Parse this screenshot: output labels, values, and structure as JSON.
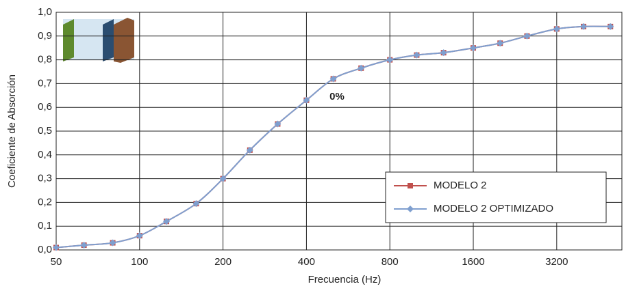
{
  "chart_data": {
    "type": "line",
    "x_label": "Frecuencia (Hz)",
    "y_label": "Coeficiente de Absorción",
    "annotation": "0%",
    "x": [
      50,
      63,
      80,
      100,
      125,
      160,
      200,
      250,
      315,
      400,
      500,
      630,
      800,
      1000,
      1250,
      1600,
      2000,
      2500,
      3200,
      4000,
      5000
    ],
    "x_scale": "log",
    "xlim": [
      50,
      5500
    ],
    "xticks": [
      50,
      100,
      200,
      400,
      800,
      1600,
      3200
    ],
    "ylim": [
      0,
      1
    ],
    "yticks": [
      {
        "value": 0,
        "label": "0,0"
      },
      {
        "value": 0.1,
        "label": "0,1"
      },
      {
        "value": 0.2,
        "label": "0,2"
      },
      {
        "value": 0.3,
        "label": "0,3"
      },
      {
        "value": 0.4,
        "label": "0,4"
      },
      {
        "value": 0.5,
        "label": "0,5"
      },
      {
        "value": 0.6,
        "label": "0,6"
      },
      {
        "value": 0.7,
        "label": "0,7"
      },
      {
        "value": 0.8,
        "label": "0,8"
      },
      {
        "value": 0.9,
        "label": "0,9"
      },
      {
        "value": 1,
        "label": "1,0"
      }
    ],
    "grid": true,
    "legend_position": "lower right",
    "series": [
      {
        "name": "MODELO 2",
        "color": "#c0504d",
        "marker": "square",
        "values": [
          0.01,
          0.02,
          0.03,
          0.06,
          0.12,
          0.195,
          0.3,
          0.42,
          0.53,
          0.63,
          0.72,
          0.765,
          0.8,
          0.82,
          0.83,
          0.85,
          0.87,
          0.9,
          0.93,
          0.94,
          0.94
        ]
      },
      {
        "name": "MODELO 2 OPTIMIZADO",
        "color": "#7f9fcf",
        "marker": "diamond",
        "values": [
          0.01,
          0.02,
          0.03,
          0.06,
          0.12,
          0.195,
          0.3,
          0.42,
          0.53,
          0.63,
          0.72,
          0.765,
          0.8,
          0.82,
          0.83,
          0.85,
          0.87,
          0.9,
          0.93,
          0.94,
          0.94
        ]
      }
    ]
  }
}
